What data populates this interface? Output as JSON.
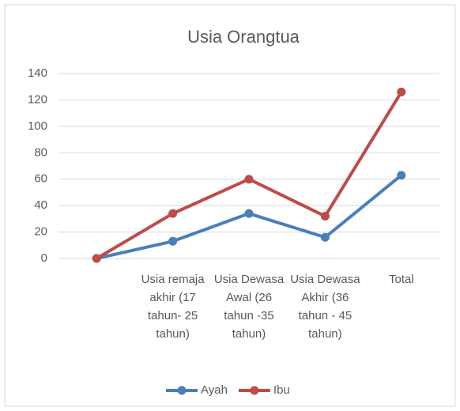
{
  "chart_data": {
    "type": "line",
    "title": "Usia Orangtua",
    "categories": [
      null,
      "Usia remaja akhir (17 tahun- 25 tahun)",
      "Usia Dewasa Awal (26 tahun -35 tahun)",
      "Usia Dewasa Akhir (36 tahun - 45 tahun)",
      "Total"
    ],
    "series": [
      {
        "name": "Ayah",
        "color": "#4a7ebb",
        "values": [
          0,
          13,
          34,
          16,
          63
        ]
      },
      {
        "name": "Ibu",
        "color": "#be4b48",
        "values": [
          0,
          34,
          60,
          32,
          126
        ]
      }
    ],
    "ylim": [
      0,
      140
    ],
    "yticks": [
      0,
      20,
      40,
      60,
      80,
      100,
      120,
      140
    ],
    "grid": true,
    "legend": "bottom"
  }
}
